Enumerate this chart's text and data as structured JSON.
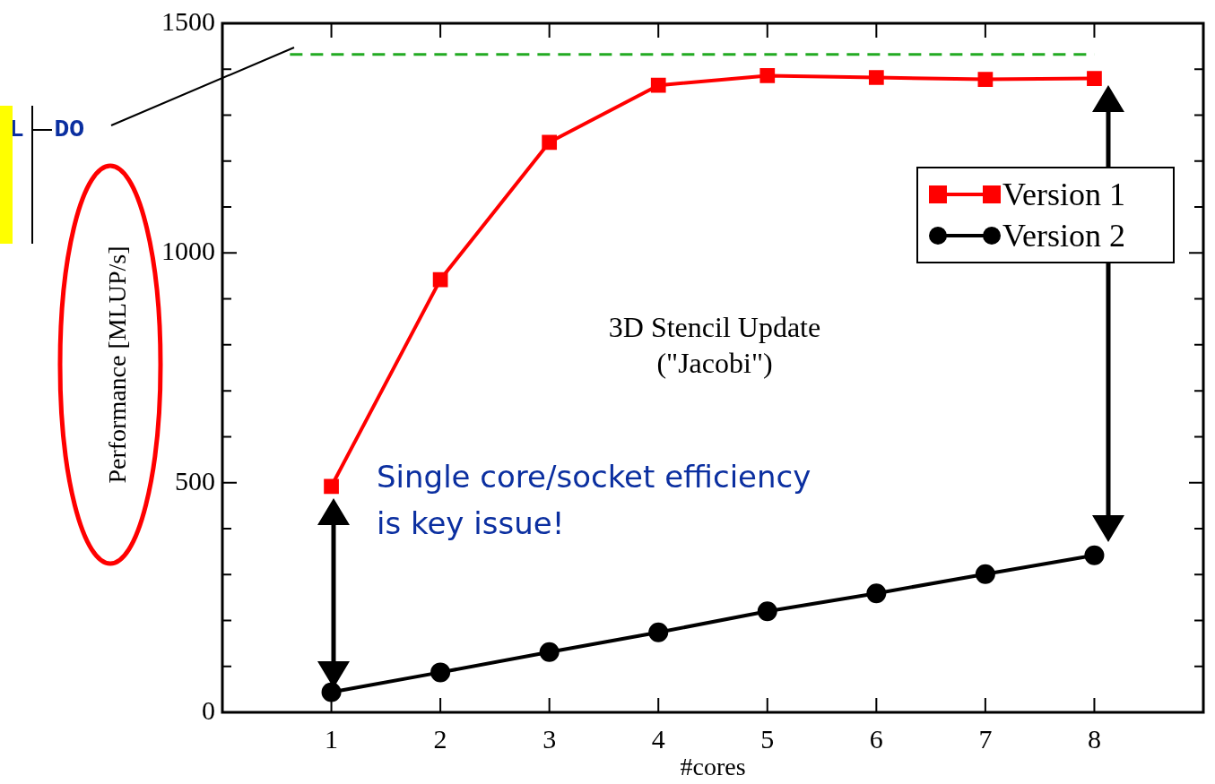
{
  "chart_data": {
    "type": "line",
    "xlabel": "#cores",
    "ylabel": "Performance [MLUP/s]",
    "x": [
      1,
      2,
      3,
      4,
      5,
      6,
      7,
      8
    ],
    "series": [
      {
        "name": "Version 1",
        "color": "#ff0000",
        "marker": "square",
        "values": [
          492,
          942,
          1241,
          1365,
          1386,
          1382,
          1378,
          1380
        ]
      },
      {
        "name": "Version 2",
        "color": "#000000",
        "marker": "circle",
        "values": [
          44,
          87,
          131,
          174,
          220,
          259,
          301,
          342
        ]
      }
    ],
    "xlim": [
      0,
      9
    ],
    "xticks": [
      1,
      2,
      3,
      4,
      5,
      6,
      7,
      8
    ],
    "ylim": [
      0,
      1500
    ],
    "yticks": [
      0,
      {
        "value": 100,
        "label": null
      },
      {
        "value": 200,
        "label": null
      },
      {
        "value": 300,
        "label": null
      },
      {
        "value": 400,
        "label": null
      },
      500,
      {
        "value": 600,
        "label": null
      },
      {
        "value": 700,
        "label": null
      },
      {
        "value": 800,
        "label": null
      },
      {
        "value": 900,
        "label": null
      },
      1000,
      {
        "value": 1100,
        "label": null
      },
      {
        "value": 1200,
        "label": null
      },
      {
        "value": 1300,
        "label": null
      },
      {
        "value": 1400,
        "label": null
      },
      1500
    ],
    "ref_lines": [
      {
        "axis": "y",
        "value": 1432,
        "color": "#22aa22",
        "line_style": "dashed"
      }
    ],
    "annotations": [
      "3D Stencil Update\n(\"Jacobi\")",
      "Single core/socket efficiency\nis key issue!",
      "L  DO"
    ],
    "legend": "top right",
    "grid": false
  }
}
